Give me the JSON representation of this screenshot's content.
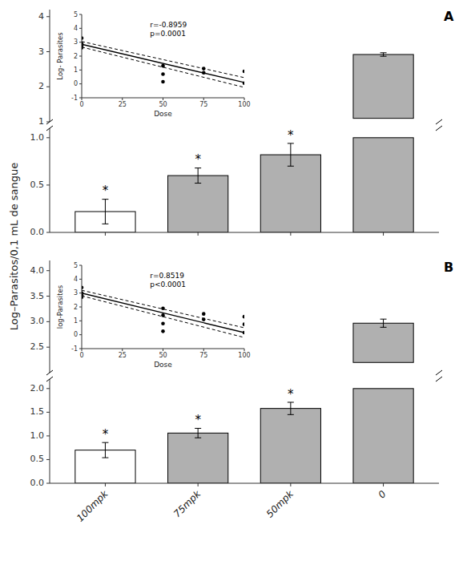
{
  "chart_data": {
    "type": "bar",
    "ylabel": "Log–Parasitos/0,1 mL de sangue",
    "panels": [
      {
        "type": "bar",
        "title": "A",
        "categories": [
          null,
          null,
          null,
          null
        ],
        "values": [
          0.22,
          0.6,
          0.82,
          1.0
        ],
        "errors": [
          0.13,
          0.08,
          0.12,
          null
        ],
        "colors": [
          "#ffffff",
          "#b0b0b0",
          "#b0b0b0",
          "#b0b0b0"
        ],
        "annotations": [
          "*",
          "*",
          "*",
          null
        ],
        "ylim": [
          0.0,
          1.1
        ],
        "yticks": [
          {
            "value": 0.0,
            "label": "0.0"
          },
          0.5,
          {
            "value": 1.0,
            "label": "1.0"
          }
        ],
        "upper": {
          "ylim": [
            1.0,
            4.2
          ],
          "yticks": [
            1,
            2,
            3,
            4
          ],
          "value": 2.92,
          "error": 0.05,
          "color": "#b0b0b0"
        },
        "inset": {
          "type": "scatter",
          "color": "#000000",
          "x": [
            0,
            0,
            0,
            0,
            50,
            50,
            50,
            75,
            75,
            100,
            100
          ],
          "y": [
            3.3,
            2.9,
            2.75,
            2.6,
            1.3,
            0.7,
            0.15,
            1.1,
            0.8,
            0.9,
            0.05
          ],
          "series": [
            {
              "type": "line",
              "line_style": "solid",
              "color": "#000000",
              "x": [
                0,
                100
              ],
              "values": [
                2.85,
                0.1
              ]
            },
            {
              "type": "line",
              "line_style": "dashed",
              "color": "#000000",
              "x": [
                0,
                100
              ],
              "values": [
                3.05,
                0.45
              ]
            },
            {
              "type": "line",
              "line_style": "dashed",
              "color": "#000000",
              "x": [
                0,
                100
              ],
              "values": [
                2.65,
                -0.25
              ]
            }
          ],
          "xlim": [
            0,
            100
          ],
          "ylim": [
            -1,
            5
          ],
          "xticks": [
            0,
            25,
            50,
            75,
            100
          ],
          "yticks": [
            -1,
            0,
            1,
            2,
            3,
            4,
            5
          ],
          "xlabel": "Dose",
          "ylabel": "Log- Parasites",
          "annotations": [
            "r=-0.8959",
            "p=0.0001"
          ]
        }
      },
      {
        "type": "bar",
        "title": "B",
        "categories": [
          "100mpk",
          "75mpk",
          "50mpk",
          "0"
        ],
        "values": [
          0.7,
          1.06,
          1.58,
          2.0
        ],
        "errors": [
          0.16,
          0.1,
          0.13,
          null
        ],
        "colors": [
          "#ffffff",
          "#b0b0b0",
          "#b0b0b0",
          "#b0b0b0"
        ],
        "annotations": [
          "*",
          "*",
          "*",
          null
        ],
        "ylim": [
          0.0,
          2.2
        ],
        "yticks": [
          {
            "value": 0.0,
            "label": "0.0"
          },
          0.5,
          {
            "value": 1.0,
            "label": "1.0"
          },
          1.5,
          {
            "value": 2.0,
            "label": "2.0"
          }
        ],
        "upper": {
          "ylim": [
            2.0,
            4.2
          ],
          "yticks": [
            2.5,
            {
              "value": 3.0,
              "label": "3.0"
            },
            3.5,
            {
              "value": 4.0,
              "label": "4.0"
            }
          ],
          "value": 2.97,
          "error": 0.08,
          "color": "#b0b0b0"
        },
        "inset": {
          "type": "scatter",
          "color": "#000000",
          "x": [
            0,
            0,
            0,
            0,
            50,
            50,
            50,
            50,
            75,
            75,
            100,
            100,
            100
          ],
          "y": [
            3.4,
            3.0,
            2.85,
            2.7,
            1.9,
            1.4,
            0.8,
            0.25,
            1.5,
            1.1,
            1.3,
            0.75,
            0.15
          ],
          "series": [
            {
              "type": "line",
              "line_style": "solid",
              "color": "#000000",
              "x": [
                0,
                100
              ],
              "values": [
                3.0,
                0.15
              ]
            },
            {
              "type": "line",
              "line_style": "dashed",
              "color": "#000000",
              "x": [
                0,
                100
              ],
              "values": [
                3.2,
                0.5
              ]
            },
            {
              "type": "line",
              "line_style": "dashed",
              "color": "#000000",
              "x": [
                0,
                100
              ],
              "values": [
                2.8,
                -0.2
              ]
            }
          ],
          "xlim": [
            0,
            100
          ],
          "ylim": [
            -1,
            5
          ],
          "xticks": [
            0,
            25,
            50,
            75,
            100
          ],
          "yticks": [
            -1,
            0,
            1,
            2,
            3,
            4,
            5
          ],
          "xlabel": "Dose",
          "ylabel": "log-Parasites",
          "annotations": [
            "r=0.8519",
            "p<0.0001"
          ]
        }
      }
    ]
  }
}
